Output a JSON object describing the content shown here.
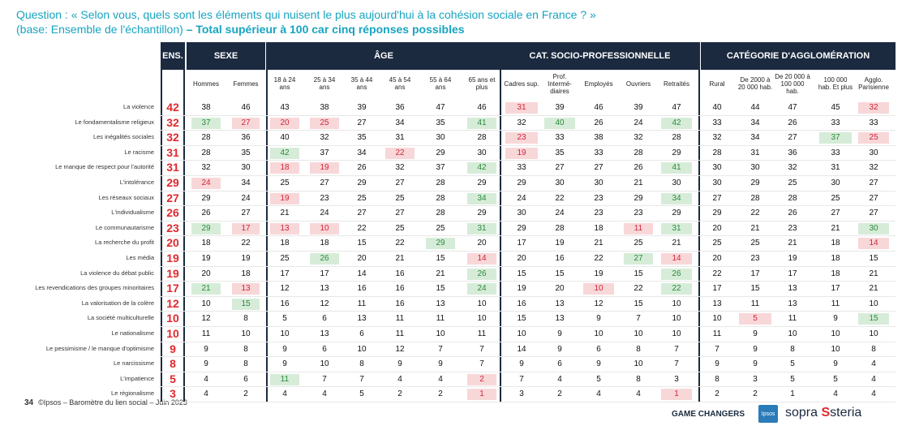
{
  "question": {
    "line1": "Question : « Selon vous, quels sont les éléments qui nuisent le plus aujourd'hui à la cohésion sociale en France ? »",
    "line2_plain": "(base: Ensemble de l'échantillon)",
    "line2_bold": " – Total supérieur à 100 car cinq réponses possibles"
  },
  "groups": {
    "ens": "ENS.",
    "sexe": "SEXE",
    "age": "ÂGE",
    "csp": "CAT. SOCIO-PROFESSIONNELLE",
    "agglo": "CATÉGORIE D'AGGLOMÉRATION"
  },
  "columns": [
    "Hommes",
    "Femmes",
    "18 à 24 ans",
    "25 à 34 ans",
    "35 à 44 ans",
    "45 à 54 ans",
    "55 à 64 ans",
    "65 ans et plus",
    "Cadres sup.",
    "Prof. Intermé-diaires",
    "Employés",
    "Ouvriers",
    "Retraités",
    "Rural",
    "De 2000 à 20 000 hab.",
    "De 20 000 à 100 000 hab.",
    "100 000 hab. Et plus",
    "Agglo. Parisienne"
  ],
  "rows": [
    {
      "label": "La violence",
      "ens": "42",
      "v": [
        "38",
        "46",
        "43",
        "38",
        "39",
        "36",
        "47",
        "46",
        "31",
        "39",
        "46",
        "39",
        "47",
        "40",
        "44",
        "47",
        "45",
        "32"
      ],
      "h": [
        "",
        "",
        "",
        "",
        "",
        "",
        "",
        "",
        "r",
        "",
        "",
        "",
        "",
        "",
        "",
        "",
        "",
        "r"
      ]
    },
    {
      "label": "Le fondamentalisme religieux",
      "ens": "32",
      "v": [
        "37",
        "27",
        "20",
        "25",
        "27",
        "34",
        "35",
        "41",
        "32",
        "40",
        "26",
        "24",
        "42",
        "33",
        "34",
        "26",
        "33",
        "33"
      ],
      "h": [
        "g",
        "r",
        "r",
        "r",
        "",
        "",
        "",
        "g",
        "",
        "g",
        "",
        "",
        "g",
        "",
        "",
        "",
        "",
        ""
      ]
    },
    {
      "label": "Les inégalités sociales",
      "ens": "32",
      "v": [
        "28",
        "36",
        "40",
        "32",
        "35",
        "31",
        "30",
        "28",
        "23",
        "33",
        "38",
        "32",
        "28",
        "32",
        "34",
        "27",
        "37",
        "25"
      ],
      "h": [
        "",
        "",
        "",
        "",
        "",
        "",
        "",
        "",
        "r",
        "",
        "",
        "",
        "",
        "",
        "",
        "",
        "g",
        "r"
      ]
    },
    {
      "label": "Le racisme",
      "ens": "31",
      "v": [
        "28",
        "35",
        "42",
        "37",
        "34",
        "22",
        "29",
        "30",
        "19",
        "35",
        "33",
        "28",
        "29",
        "28",
        "31",
        "36",
        "33",
        "30"
      ],
      "h": [
        "",
        "",
        "g",
        "",
        "",
        "r",
        "",
        "",
        "r",
        "",
        "",
        "",
        "",
        "",
        "",
        "",
        "",
        ""
      ]
    },
    {
      "label": "Le manque de respect pour l'autorité",
      "ens": "31",
      "v": [
        "32",
        "30",
        "18",
        "19",
        "26",
        "32",
        "37",
        "42",
        "33",
        "27",
        "27",
        "26",
        "41",
        "30",
        "30",
        "32",
        "31",
        "32"
      ],
      "h": [
        "",
        "",
        "r",
        "r",
        "",
        "",
        "",
        "g",
        "",
        "",
        "",
        "",
        "g",
        "",
        "",
        "",
        "",
        ""
      ]
    },
    {
      "label": "L'intolérance",
      "ens": "29",
      "v": [
        "24",
        "34",
        "25",
        "27",
        "29",
        "27",
        "28",
        "29",
        "29",
        "30",
        "30",
        "21",
        "30",
        "30",
        "29",
        "25",
        "30",
        "27"
      ],
      "h": [
        "r",
        "",
        "",
        "",
        "",
        "",
        "",
        "",
        "",
        "",
        "",
        "",
        "",
        "",
        "",
        "",
        "",
        ""
      ]
    },
    {
      "label": "Les réseaux sociaux",
      "ens": "27",
      "v": [
        "29",
        "24",
        "19",
        "23",
        "25",
        "25",
        "28",
        "34",
        "24",
        "22",
        "23",
        "29",
        "34",
        "27",
        "28",
        "28",
        "25",
        "27"
      ],
      "h": [
        "",
        "",
        "r",
        "",
        "",
        "",
        "",
        "g",
        "",
        "",
        "",
        "",
        "g",
        "",
        "",
        "",
        "",
        ""
      ]
    },
    {
      "label": "L'individualisme",
      "ens": "26",
      "v": [
        "26",
        "27",
        "21",
        "24",
        "27",
        "27",
        "28",
        "29",
        "30",
        "24",
        "23",
        "23",
        "29",
        "29",
        "22",
        "26",
        "27",
        "27"
      ],
      "h": [
        "",
        "",
        "",
        "",
        "",
        "",
        "",
        "",
        "",
        "",
        "",
        "",
        "",
        "",
        "",
        "",
        "",
        ""
      ]
    },
    {
      "label": "Le communautarisme",
      "ens": "23",
      "v": [
        "29",
        "17",
        "13",
        "10",
        "22",
        "25",
        "25",
        "31",
        "29",
        "28",
        "18",
        "11",
        "31",
        "20",
        "21",
        "23",
        "21",
        "30"
      ],
      "h": [
        "g",
        "r",
        "r",
        "r",
        "",
        "",
        "",
        "g",
        "",
        "",
        "",
        "r",
        "g",
        "",
        "",
        "",
        "",
        "g"
      ]
    },
    {
      "label": "La recherche du profit",
      "ens": "20",
      "v": [
        "18",
        "22",
        "18",
        "18",
        "15",
        "22",
        "29",
        "20",
        "17",
        "19",
        "21",
        "25",
        "21",
        "25",
        "25",
        "21",
        "18",
        "14"
      ],
      "h": [
        "",
        "",
        "",
        "",
        "",
        "",
        "g",
        "",
        "",
        "",
        "",
        "",
        "",
        "",
        "",
        "",
        "",
        "r"
      ]
    },
    {
      "label": "Les média",
      "ens": "19",
      "v": [
        "19",
        "19",
        "25",
        "26",
        "20",
        "21",
        "15",
        "14",
        "20",
        "16",
        "22",
        "27",
        "14",
        "20",
        "23",
        "19",
        "18",
        "15"
      ],
      "h": [
        "",
        "",
        "",
        "g",
        "",
        "",
        "",
        "r",
        "",
        "",
        "",
        "g",
        "r",
        "",
        "",
        "",
        "",
        ""
      ]
    },
    {
      "label": "La violence du débat public",
      "ens": "19",
      "v": [
        "20",
        "18",
        "17",
        "17",
        "14",
        "16",
        "21",
        "26",
        "15",
        "15",
        "19",
        "15",
        "26",
        "22",
        "17",
        "17",
        "18",
        "21"
      ],
      "h": [
        "",
        "",
        "",
        "",
        "",
        "",
        "",
        "g",
        "",
        "",
        "",
        "",
        "g",
        "",
        "",
        "",
        "",
        ""
      ]
    },
    {
      "label": "Les revendications des groupes minoritaires",
      "ens": "17",
      "v": [
        "21",
        "13",
        "12",
        "13",
        "16",
        "16",
        "15",
        "24",
        "19",
        "20",
        "10",
        "22",
        "22",
        "17",
        "15",
        "13",
        "17",
        "21"
      ],
      "h": [
        "g",
        "r",
        "",
        "",
        "",
        "",
        "",
        "g",
        "",
        "",
        "r",
        "",
        "g",
        "",
        "",
        "",
        "",
        ""
      ]
    },
    {
      "label": "La valorisation de la colère",
      "ens": "12",
      "v": [
        "10",
        "15",
        "16",
        "12",
        "11",
        "16",
        "13",
        "10",
        "16",
        "13",
        "12",
        "15",
        "10",
        "13",
        "11",
        "13",
        "11",
        "10"
      ],
      "h": [
        "",
        "g",
        "",
        "",
        "",
        "",
        "",
        "",
        "",
        "",
        "",
        "",
        "",
        "",
        "",
        "",
        "",
        ""
      ]
    },
    {
      "label": "La société multiculturelle",
      "ens": "10",
      "v": [
        "12",
        "8",
        "5",
        "6",
        "13",
        "11",
        "11",
        "10",
        "15",
        "13",
        "9",
        "7",
        "10",
        "10",
        "5",
        "11",
        "9",
        "15"
      ],
      "h": [
        "",
        "",
        "",
        "",
        "",
        "",
        "",
        "",
        "",
        "",
        "",
        "",
        "",
        "",
        "r",
        "",
        "",
        "g"
      ]
    },
    {
      "label": "Le nationalisme",
      "ens": "10",
      "v": [
        "11",
        "10",
        "10",
        "13",
        "6",
        "11",
        "10",
        "11",
        "10",
        "9",
        "10",
        "10",
        "10",
        "11",
        "9",
        "10",
        "10",
        "10"
      ],
      "h": [
        "",
        "",
        "",
        "",
        "",
        "",
        "",
        "",
        "",
        "",
        "",
        "",
        "",
        "",
        "",
        "",
        "",
        ""
      ]
    },
    {
      "label": "Le pessimisme / le manque d'optimisme",
      "ens": "9",
      "v": [
        "9",
        "8",
        "9",
        "6",
        "10",
        "12",
        "7",
        "7",
        "14",
        "9",
        "6",
        "8",
        "7",
        "7",
        "9",
        "8",
        "10",
        "8"
      ],
      "h": [
        "",
        "",
        "",
        "",
        "",
        "",
        "",
        "",
        "",
        "",
        "",
        "",
        "",
        "",
        "",
        "",
        "",
        ""
      ]
    },
    {
      "label": "Le narcissisme",
      "ens": "8",
      "v": [
        "9",
        "8",
        "9",
        "10",
        "8",
        "9",
        "9",
        "7",
        "9",
        "6",
        "9",
        "10",
        "7",
        "9",
        "9",
        "5",
        "9",
        "4"
      ],
      "h": [
        "",
        "",
        "",
        "",
        "",
        "",
        "",
        "",
        "",
        "",
        "",
        "",
        "",
        "",
        "",
        "",
        "",
        ""
      ]
    },
    {
      "label": "L'impatience",
      "ens": "5",
      "v": [
        "4",
        "6",
        "11",
        "7",
        "7",
        "4",
        "4",
        "2",
        "7",
        "4",
        "5",
        "8",
        "3",
        "8",
        "3",
        "5",
        "5",
        "4"
      ],
      "h": [
        "",
        "",
        "g",
        "",
        "",
        "",
        "",
        "r",
        "",
        "",
        "",
        "",
        "",
        "",
        "",
        "",
        "",
        ""
      ]
    },
    {
      "label": "Le régionalisme",
      "ens": "3",
      "v": [
        "4",
        "2",
        "4",
        "4",
        "5",
        "2",
        "2",
        "1",
        "3",
        "2",
        "4",
        "4",
        "1",
        "2",
        "2",
        "1",
        "4",
        "4"
      ],
      "h": [
        "",
        "",
        "",
        "",
        "",
        "",
        "",
        "r",
        "",
        "",
        "",
        "",
        "r",
        "",
        "",
        "",
        "",
        ""
      ]
    }
  ],
  "footer": {
    "page": "34",
    "text": "©Ipsos – Baromètre du lien social – Juin 2023",
    "game_changers": "GAME CHANGERS",
    "ipsos": "Ipsos",
    "sopra": "sopra",
    "steria": "steria"
  }
}
